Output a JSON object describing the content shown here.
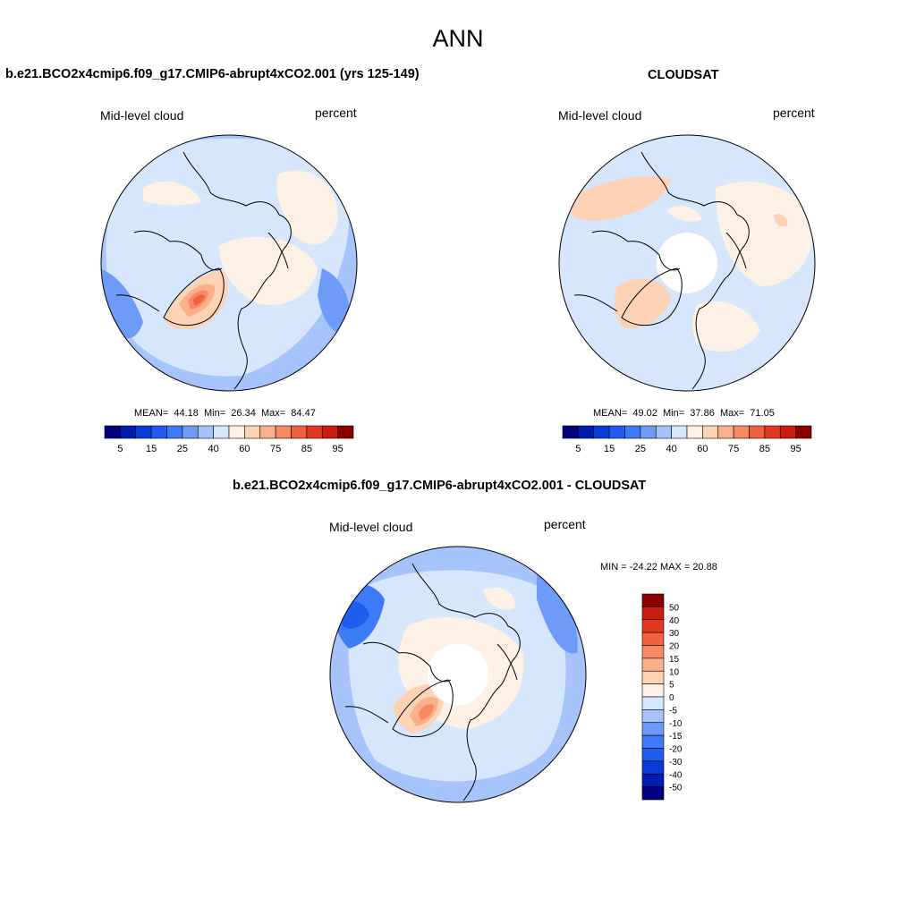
{
  "suptitle": "ANN",
  "colors": {
    "abs_scale": [
      "#00007f",
      "#001cb0",
      "#0a3ad8",
      "#1f5cf0",
      "#3d7af5",
      "#6e9bf8",
      "#a6c4fb",
      "#d6e6fd",
      "#fdf0e4",
      "#fdd2b5",
      "#fbb08c",
      "#f88a63",
      "#f26040",
      "#e5381f",
      "#c91b10",
      "#8a0000"
    ],
    "diff_scale": [
      "#00007f",
      "#001cb0",
      "#0a3ad8",
      "#1f5cf0",
      "#3d7af5",
      "#6e9bf8",
      "#a6c4fb",
      "#d6e6fd",
      "#fdf0e4",
      "#fdd2b5",
      "#fbb08c",
      "#f88a63",
      "#f26040",
      "#e5381f",
      "#c91b10",
      "#8a0000"
    ]
  },
  "chart_data": [
    {
      "type": "heatmap",
      "projection": "north polar stereographic",
      "title": "b.e21.BCO2x4cmip6.f09_g17.CMIP6-abrupt4xCO2.001 (yrs 125-149)",
      "left_label": "Mid-level cloud",
      "right_label": "percent",
      "stats": {
        "mean_label": "MEAN=",
        "mean": "44.18",
        "min_label": "Min=",
        "min": "26.34",
        "max_label": "Max=",
        "max": "84.47"
      },
      "colorbar": {
        "orientation": "horizontal",
        "tick_labels": [
          "5",
          "15",
          "25",
          "40",
          "60",
          "75",
          "85",
          "95"
        ],
        "levels": [
          5,
          10,
          15,
          20,
          25,
          30,
          35,
          40,
          50,
          60,
          65,
          70,
          75,
          80,
          85,
          90,
          95
        ]
      },
      "features": [
        {
          "region": "Greenland",
          "level_range": [
            60,
            90
          ]
        },
        {
          "region": "Northern Europe / Siberia",
          "level_range": [
            50,
            60
          ]
        },
        {
          "region": "Central Arctic",
          "level_range": [
            40,
            50
          ]
        },
        {
          "region": "North Pacific",
          "level_range": [
            50,
            60
          ]
        },
        {
          "region": "Outer ring",
          "level_range": [
            30,
            40
          ]
        }
      ]
    },
    {
      "type": "heatmap",
      "projection": "north polar stereographic",
      "title": "CLOUDSAT",
      "left_label": "Mid-level cloud",
      "right_label": "percent",
      "stats": {
        "mean_label": "MEAN=",
        "mean": "49.02",
        "min_label": "Min=",
        "min": "37.86",
        "max_label": "Max=",
        "max": "71.05"
      },
      "colorbar": {
        "orientation": "horizontal",
        "tick_labels": [
          "5",
          "15",
          "25",
          "40",
          "60",
          "75",
          "85",
          "95"
        ],
        "levels": [
          5,
          10,
          15,
          20,
          25,
          30,
          35,
          40,
          50,
          60,
          65,
          70,
          75,
          80,
          85,
          90,
          95
        ]
      },
      "missing_data": "pole region (no data)",
      "features": [
        {
          "region": "North Pacific",
          "level_range": [
            60,
            70
          ]
        },
        {
          "region": "Siberia",
          "level_range": [
            50,
            65
          ]
        },
        {
          "region": "Greenland",
          "level_range": [
            50,
            65
          ]
        },
        {
          "region": "Northern Europe",
          "level_range": [
            50,
            60
          ]
        },
        {
          "region": "Canada / Arctic",
          "level_range": [
            40,
            50
          ]
        }
      ]
    },
    {
      "type": "heatmap",
      "projection": "north polar stereographic",
      "title": "b.e21.BCO2x4cmip6.f09_g17.CMIP6-abrupt4xCO2.001 - CLOUDSAT",
      "left_label": "Mid-level cloud",
      "right_label": "percent",
      "stats": {
        "text": "MIN = -24.22 MAX =  20.88",
        "min": -24.22,
        "max": 20.88
      },
      "colorbar": {
        "orientation": "vertical",
        "tick_labels": [
          "50",
          "40",
          "30",
          "20",
          "15",
          "10",
          "5",
          "0",
          "-5",
          "-10",
          "-15",
          "-20",
          "-30",
          "-40",
          "-50"
        ]
      },
      "missing_data": "pole region (no data)",
      "features": [
        {
          "region": "Greenland",
          "level_range": [
            10,
            20
          ]
        },
        {
          "region": "North Pacific",
          "level_range": [
            -20,
            -10
          ]
        },
        {
          "region": "Central Arctic ring",
          "level_range": [
            0,
            5
          ]
        },
        {
          "region": "Europe / Atlantic",
          "level_range": [
            -10,
            -5
          ]
        }
      ]
    }
  ]
}
